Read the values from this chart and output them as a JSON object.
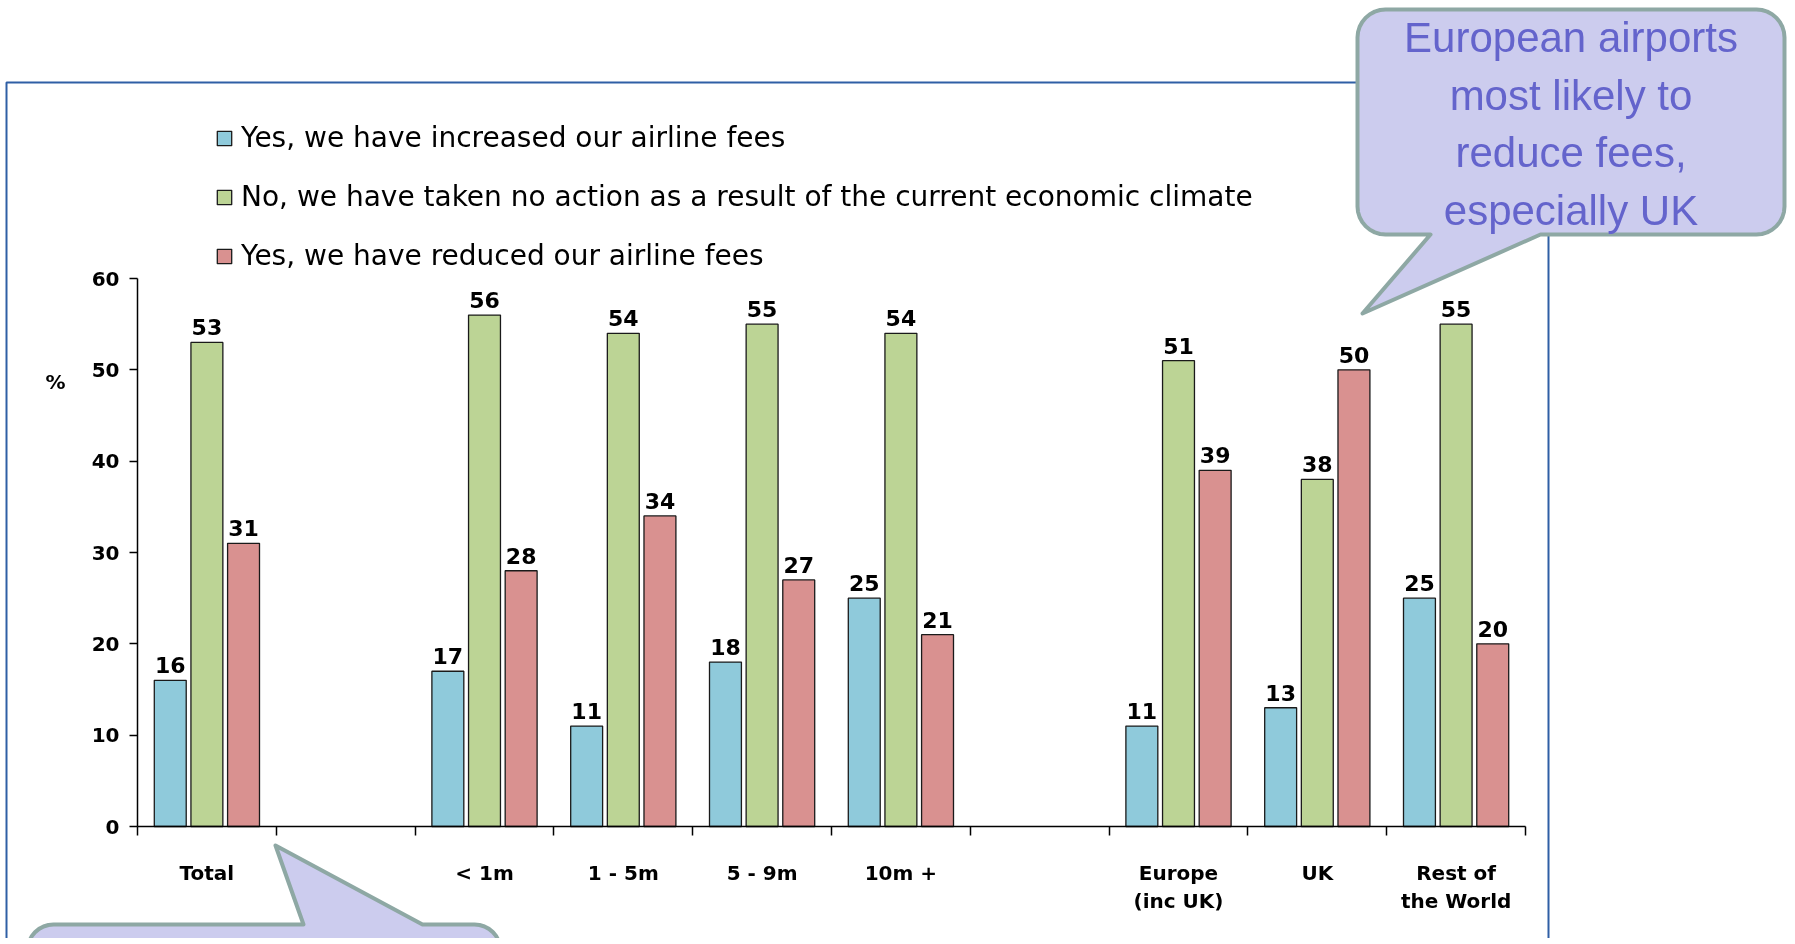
{
  "chart_data": {
    "type": "bar",
    "categories": [
      "Total",
      null,
      "< 1m",
      "1 - 5m",
      "5 - 9m",
      "10m +",
      null,
      "Europe (inc UK)",
      "UK",
      "Rest of the World"
    ],
    "series": [
      {
        "name": "Yes, we have increased our airline fees",
        "color": "#8fcadb",
        "values": [
          16,
          null,
          17,
          11,
          18,
          25,
          null,
          11,
          13,
          25
        ]
      },
      {
        "name": "No, we have taken no action as a result of the current economic climate",
        "color": "#bcd495",
        "values": [
          53,
          null,
          56,
          54,
          55,
          54,
          null,
          51,
          38,
          55
        ]
      },
      {
        "name": "Yes, we have reduced our airline fees",
        "color": "#d99190",
        "values": [
          31,
          null,
          28,
          34,
          27,
          21,
          null,
          39,
          50,
          20
        ]
      }
    ],
    "ylabel": "%",
    "ylim": [
      0,
      60
    ],
    "yticks": [
      0,
      10,
      20,
      30,
      40,
      50,
      60
    ],
    "data_labels": true,
    "legend": "top left",
    "annotations": [
      "European airports most likely to reduce fees, especially UK"
    ]
  }
}
